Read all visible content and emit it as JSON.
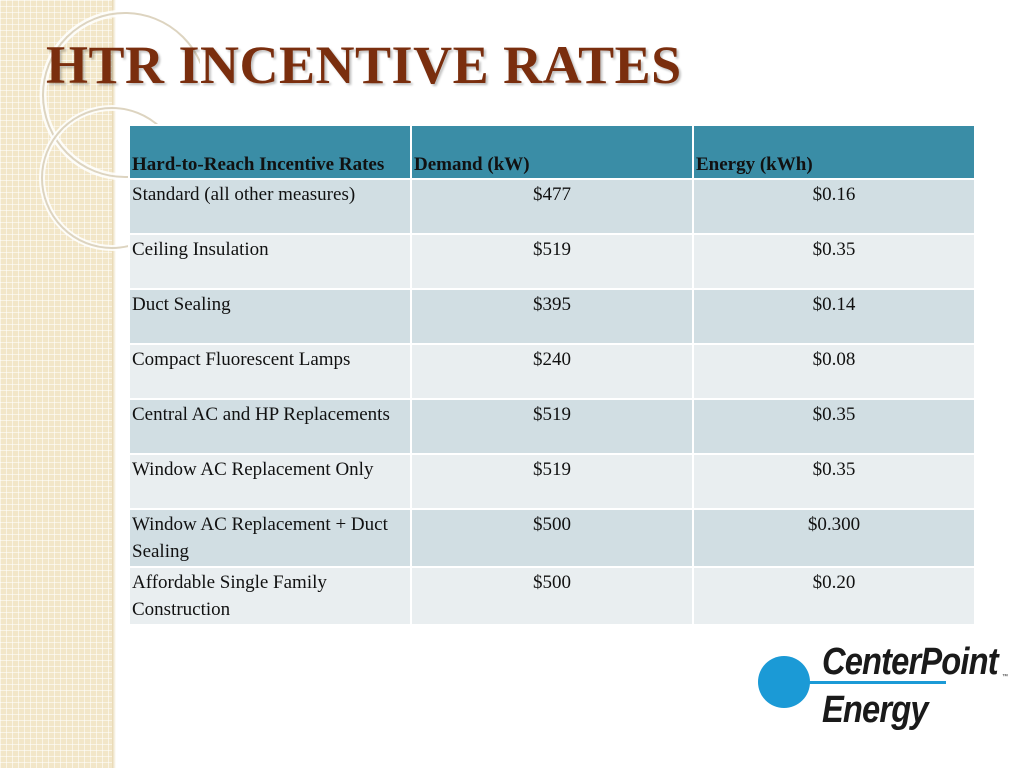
{
  "slide": {
    "title": "HTR INCENTIVE RATES"
  },
  "table": {
    "headers": [
      "Hard-to-Reach Incentive Rates",
      "Demand (kW)",
      "Energy (kWh)"
    ],
    "rows": [
      {
        "measure": "Standard (all other measures)",
        "demand": "$477",
        "energy": "$0.16"
      },
      {
        "measure": "Ceiling Insulation",
        "demand": "$519",
        "energy": "$0.35"
      },
      {
        "measure": "Duct Sealing",
        "demand": "$395",
        "energy": "$0.14"
      },
      {
        "measure": "Compact Fluorescent Lamps",
        "demand": "$240",
        "energy": "$0.08"
      },
      {
        "measure": "Central AC and HP Replacements",
        "demand": "$519",
        "energy": "$0.35"
      },
      {
        "measure": "Window AC Replacement Only",
        "demand": "$519",
        "energy": "$0.35"
      },
      {
        "measure": "Window AC Replacement + Duct Sealing",
        "demand": "$500",
        "energy": "$0.300"
      },
      {
        "measure": "Affordable Single Family Construction",
        "demand": "$500",
        "energy": "$0.20"
      }
    ]
  },
  "logo": {
    "line1": "CenterPoint",
    "line2": "Energy",
    "trademark": "™"
  },
  "colors": {
    "title": "#7a2e0e",
    "header_bg": "#3a8da6",
    "row_dark": "#d1dee3",
    "row_light": "#e9eef0",
    "logo_blue": "#1b9ad6",
    "side_band": "#f2e6c8"
  }
}
